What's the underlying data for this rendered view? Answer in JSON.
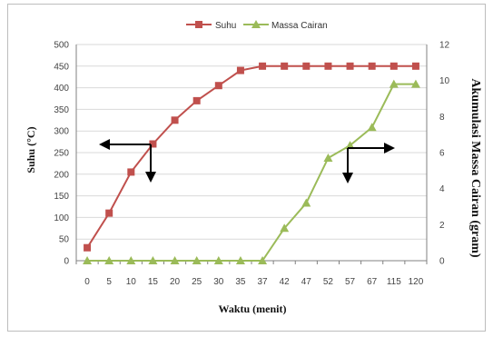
{
  "chart_data": {
    "type": "line",
    "categories": [
      "0",
      "5",
      "10",
      "15",
      "20",
      "25",
      "30",
      "35",
      "37",
      "42",
      "47",
      "52",
      "57",
      "67",
      "115",
      "120"
    ],
    "xlabel": "Waktu (menit)",
    "ylabel_left": "Suhu (°C)",
    "ylabel_right": "Akumulasi Massa Cairan (gram)",
    "ylim_left": [
      0,
      500
    ],
    "yticks_left": [
      0,
      50,
      100,
      150,
      200,
      250,
      300,
      350,
      400,
      450,
      500
    ],
    "ylim_right": [
      0,
      12
    ],
    "yticks_right": [
      0,
      2,
      4,
      6,
      8,
      10,
      12
    ],
    "grid": true,
    "legend": "top",
    "series": [
      {
        "name": "Suhu",
        "axis": "left",
        "color": "#c0504d",
        "marker": "square",
        "values": [
          30,
          110,
          205,
          270,
          325,
          370,
          405,
          440,
          450,
          450,
          450,
          450,
          450,
          450,
          450,
          450
        ]
      },
      {
        "name": "Massa Cairan",
        "axis": "right",
        "color": "#9bbb59",
        "marker": "triangle",
        "values": [
          0,
          0,
          0,
          0,
          0,
          0,
          0,
          0,
          0,
          1.8,
          3.2,
          5.7,
          6.4,
          7.4,
          9.8,
          9.8
        ]
      }
    ]
  }
}
